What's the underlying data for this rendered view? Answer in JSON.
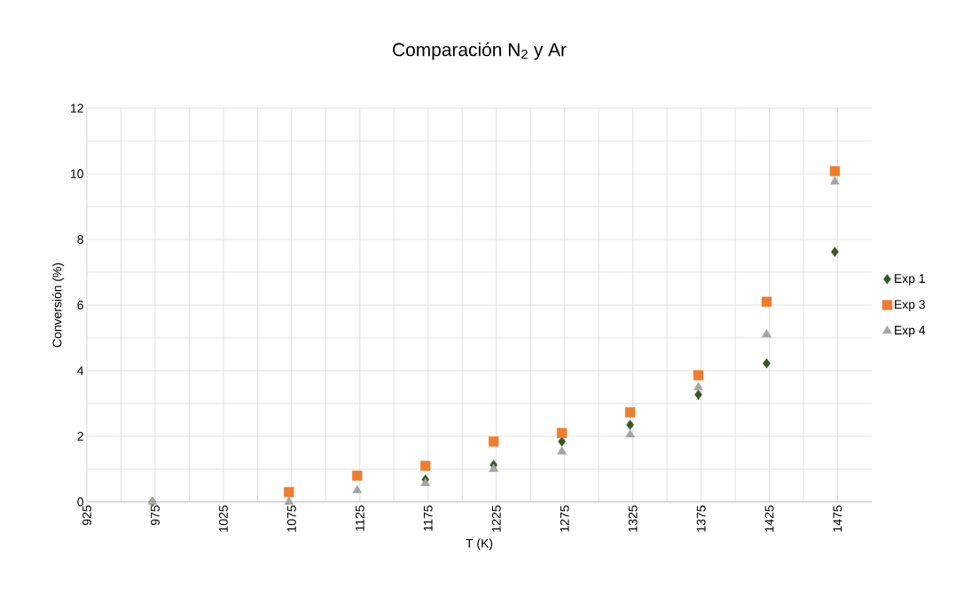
{
  "chart_data": {
    "type": "scatter",
    "title": "Comparación N$_{2}$ y Ar",
    "xlabel": "T (K)",
    "ylabel": "Conversión (%)",
    "xlim": [
      925,
      1500
    ],
    "xticks": [
      925,
      975,
      1025,
      1075,
      1125,
      1175,
      1225,
      1275,
      1325,
      1375,
      1425,
      1475
    ],
    "ylim": [
      0,
      12
    ],
    "yticks": [
      0,
      2,
      4,
      6,
      8,
      10,
      12
    ],
    "x": [
      973,
      1073,
      1123,
      1173,
      1223,
      1273,
      1323,
      1373,
      1423,
      1473
    ],
    "series": [
      {
        "name": "Exp 1",
        "color": "#375623",
        "marker": "diamond",
        "values": [
          0,
          null,
          null,
          0.68,
          1.13,
          1.84,
          2.35,
          3.27,
          4.22,
          7.62
        ]
      },
      {
        "name": "Exp 3",
        "color": "#ed7d31",
        "marker": "square",
        "values": [
          null,
          0.3,
          0.8,
          1.1,
          1.84,
          2.1,
          2.73,
          3.86,
          6.1,
          10.08
        ]
      },
      {
        "name": "Exp 4",
        "color": "#a5a5a5",
        "marker": "triangle",
        "values": [
          0,
          0,
          0.35,
          0.57,
          1.0,
          1.53,
          2.05,
          3.49,
          5.1,
          9.76
        ]
      }
    ],
    "grid": true,
    "legend": "right"
  }
}
